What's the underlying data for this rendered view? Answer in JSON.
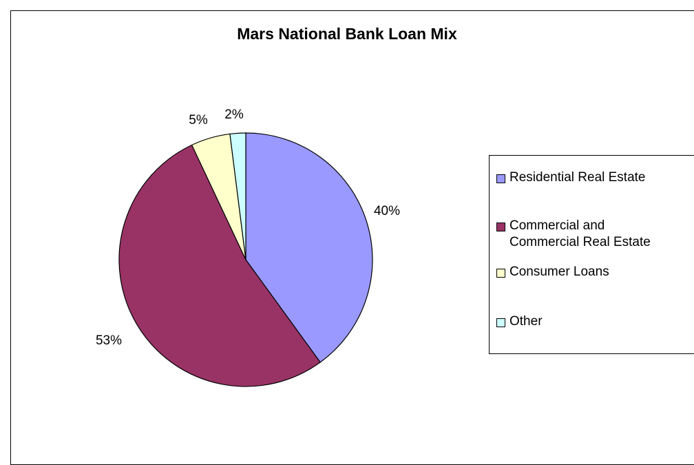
{
  "chart_data": {
    "type": "pie",
    "title": "Mars National Bank Loan Mix",
    "categories": [
      "Residential Real Estate",
      "Commercial and\nCommercial Real Estate",
      "Consumer Loans",
      "Other"
    ],
    "values": [
      40,
      53,
      5,
      2
    ],
    "labels": [
      "40%",
      "53%",
      "5%",
      "2%"
    ],
    "colors": [
      "#9999ff",
      "#993366",
      "#ffffcc",
      "#ccffff"
    ],
    "legend_position": "right"
  }
}
